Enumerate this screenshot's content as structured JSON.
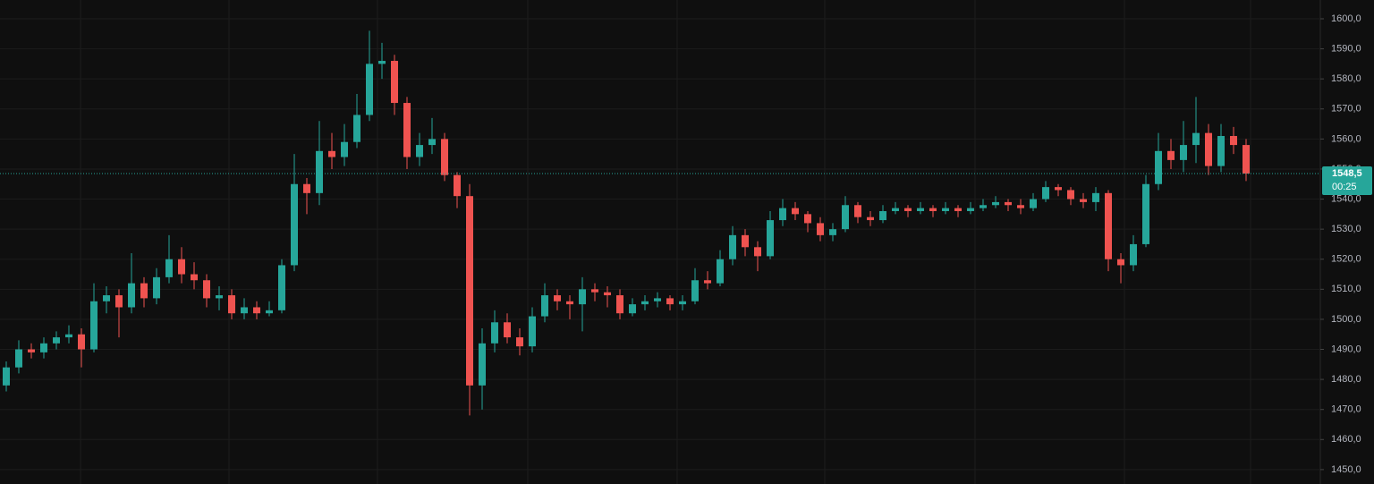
{
  "chart_data": {
    "type": "candlestick",
    "open": [
      1478,
      1484,
      1490,
      1489,
      1492,
      1494,
      1495,
      1490,
      1506,
      1508,
      1504,
      1512,
      1507,
      1514,
      1520,
      1515,
      1513,
      1507,
      1508,
      1502,
      1504,
      1502,
      1503,
      1518,
      1545,
      1542,
      1556,
      1554,
      1559,
      1568,
      1585,
      1586,
      1572,
      1554,
      1558,
      1560,
      1548,
      1541,
      1478,
      1492,
      1499,
      1494,
      1491,
      1501,
      1508,
      1506,
      1505,
      1510,
      1509,
      1508,
      1502,
      1505,
      1506,
      1507,
      1505,
      1506,
      1513,
      1512,
      1520,
      1528,
      1524,
      1521,
      1533,
      1537,
      1535,
      1532,
      1528,
      1530,
      1538,
      1534,
      1533,
      1536,
      1537,
      1536,
      1537,
      1536,
      1537,
      1536,
      1537,
      1538,
      1539,
      1538,
      1537,
      1540,
      1544,
      1543,
      1540,
      1539,
      1542,
      1520,
      1518,
      1525,
      1545,
      1556,
      1553,
      1558,
      1562,
      1551,
      1561,
      1558
    ],
    "high": [
      1486,
      1493,
      1492,
      1494,
      1496,
      1498,
      1497,
      1512,
      1511,
      1510,
      1522,
      1514,
      1517,
      1528,
      1524,
      1519,
      1515,
      1511,
      1510,
      1507,
      1506,
      1506,
      1520,
      1555,
      1547,
      1566,
      1562,
      1565,
      1575,
      1596,
      1592,
      1588,
      1574,
      1562,
      1567,
      1562,
      1549,
      1545,
      1497,
      1503,
      1502,
      1497,
      1504,
      1512,
      1510,
      1508,
      1514,
      1512,
      1511,
      1510,
      1507,
      1508,
      1509,
      1508,
      1508,
      1517,
      1516,
      1523,
      1531,
      1530,
      1526,
      1536,
      1540,
      1539,
      1536,
      1534,
      1532,
      1541,
      1539,
      1536,
      1538,
      1539,
      1538,
      1539,
      1538,
      1539,
      1538,
      1539,
      1540,
      1541,
      1540,
      1540,
      1542,
      1546,
      1545,
      1544,
      1542,
      1544,
      1543,
      1522,
      1528,
      1548,
      1562,
      1560,
      1566,
      1574,
      1565,
      1565,
      1564,
      1560
    ],
    "low": [
      1476,
      1482,
      1487,
      1487,
      1490,
      1492,
      1484,
      1489,
      1502,
      1494,
      1502,
      1504,
      1505,
      1512,
      1512,
      1510,
      1504,
      1503,
      1500,
      1500,
      1500,
      1501,
      1502,
      1516,
      1535,
      1538,
      1550,
      1551,
      1557,
      1566,
      1580,
      1568,
      1550,
      1551,
      1555,
      1546,
      1537,
      1468,
      1470,
      1489,
      1492,
      1488,
      1489,
      1499,
      1503,
      1500,
      1496,
      1506,
      1504,
      1500,
      1501,
      1503,
      1504,
      1503,
      1503,
      1505,
      1510,
      1511,
      1518,
      1521,
      1516,
      1520,
      1531,
      1533,
      1529,
      1526,
      1526,
      1529,
      1532,
      1531,
      1532,
      1535,
      1534,
      1535,
      1534,
      1535,
      1534,
      1535,
      1536,
      1537,
      1536,
      1535,
      1536,
      1539,
      1541,
      1538,
      1537,
      1536,
      1516,
      1512,
      1516,
      1524,
      1543,
      1550,
      1549,
      1552,
      1548,
      1549,
      1555,
      1546
    ],
    "close": [
      1484,
      1490,
      1489,
      1492,
      1494,
      1495,
      1490,
      1506,
      1508,
      1504,
      1512,
      1507,
      1514,
      1520,
      1515,
      1513,
      1507,
      1508,
      1502,
      1504,
      1502,
      1503,
      1518,
      1545,
      1542,
      1556,
      1554,
      1559,
      1568,
      1585,
      1586,
      1572,
      1554,
      1558,
      1560,
      1548,
      1541,
      1478,
      1492,
      1499,
      1494,
      1491,
      1501,
      1508,
      1506,
      1505,
      1510,
      1509,
      1508,
      1502,
      1505,
      1506,
      1507,
      1505,
      1506,
      1513,
      1512,
      1520,
      1528,
      1524,
      1521,
      1533,
      1537,
      1535,
      1532,
      1528,
      1530,
      1538,
      1534,
      1533,
      1536,
      1537,
      1536,
      1537,
      1536,
      1537,
      1536,
      1537,
      1538,
      1539,
      1538,
      1537,
      1540,
      1544,
      1543,
      1540,
      1539,
      1542,
      1520,
      1518,
      1525,
      1545,
      1556,
      1553,
      1558,
      1562,
      1551,
      1561,
      1558,
      1548.5
    ],
    "up_color": "#26a69a",
    "down_color": "#ef5350",
    "ylim": [
      1445.2,
      1606.25
    ],
    "yticks": [
      {
        "value": 1450,
        "label": "1450,0"
      },
      {
        "value": 1460,
        "label": "1460,0"
      },
      {
        "value": 1470,
        "label": "1470,0"
      },
      {
        "value": 1480,
        "label": "1480,0"
      },
      {
        "value": 1490,
        "label": "1490,0"
      },
      {
        "value": 1500,
        "label": "1500,0"
      },
      {
        "value": 1510,
        "label": "1510,0"
      },
      {
        "value": 1520,
        "label": "1520,0"
      },
      {
        "value": 1530,
        "label": "1530,0"
      },
      {
        "value": 1540,
        "label": "1540,0"
      },
      {
        "value": 1550,
        "label": "1550,0"
      },
      {
        "value": 1560,
        "label": "1560,0"
      },
      {
        "value": 1570,
        "label": "1570,0"
      },
      {
        "value": 1580,
        "label": "1580,0"
      },
      {
        "value": 1590,
        "label": "1590,0"
      },
      {
        "value": 1600,
        "label": "1600,0"
      }
    ],
    "grid": true,
    "last_price": {
      "value": 1548.5,
      "label": "1548,5"
    },
    "countdown": "00:25"
  }
}
